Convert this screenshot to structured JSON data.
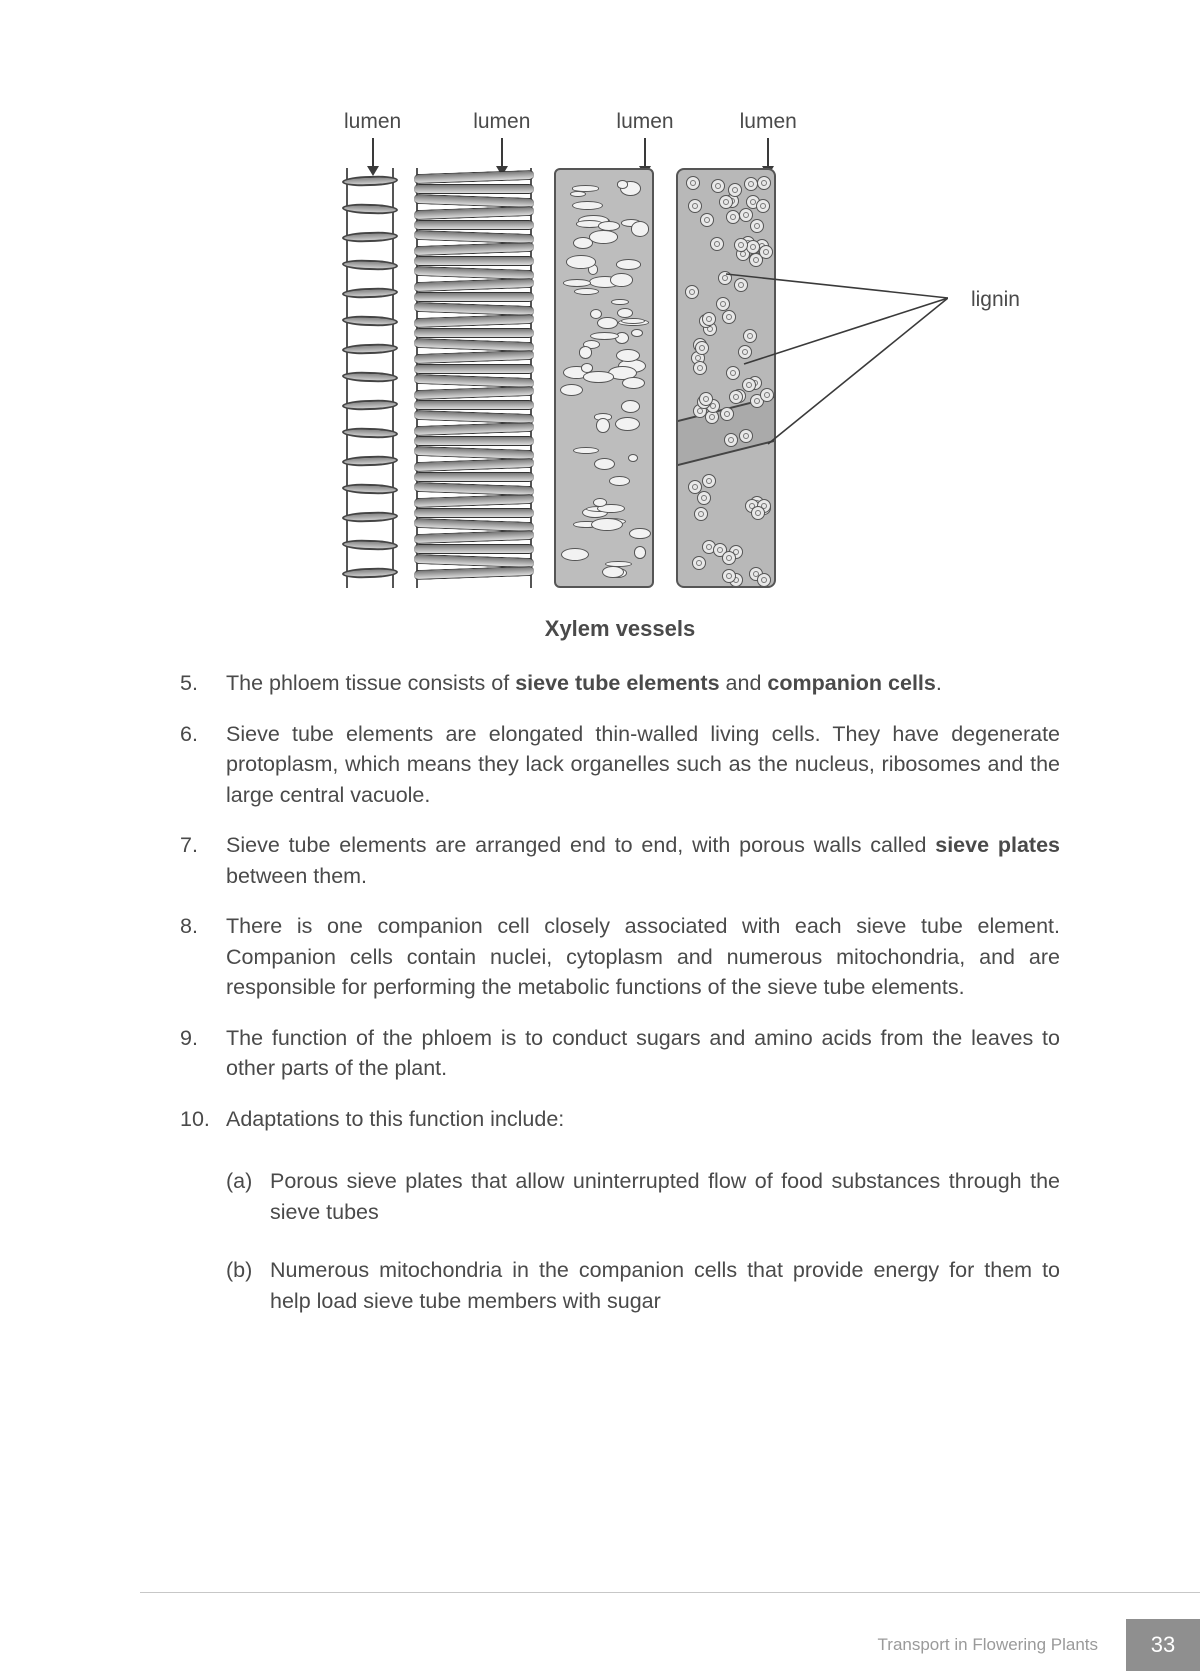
{
  "figure": {
    "top_labels": [
      "lumen",
      "lumen",
      "lumen",
      "lumen"
    ],
    "right_label": "lignin",
    "caption": "Xylem vessels",
    "label_fontsize": 21,
    "caption_fontsize": 22,
    "vessel_count": 4,
    "colors": {
      "stroke": "#3a3a3a",
      "fill_dark": "#b8b8b8",
      "fill_light": "#e8e8e8",
      "text": "#4a4a4a"
    },
    "lumen_label_x_offsets": [
      0,
      118,
      140,
      118
    ]
  },
  "items": [
    {
      "num": "5.",
      "html": "The phloem tissue consists of <b>sieve tube elements</b> and <b>companion cells</b>."
    },
    {
      "num": "6.",
      "html": "Sieve tube elements are elongated thin-walled living cells. They have degenerate protoplasm, which means they lack organelles such as the nucleus, ribosomes and the large central vacuole."
    },
    {
      "num": "7.",
      "html": "Sieve tube elements are arranged end to end, with porous walls called <b>sieve plates</b> between them."
    },
    {
      "num": "8.",
      "html": "There is one companion cell closely associated with each sieve tube element. Companion cells contain nuclei, cytoplasm and numerous mitochondria, and are responsible for performing the metabolic functions of the sieve tube elements."
    },
    {
      "num": "9.",
      "html": "The function of the phloem is to conduct sugars and amino acids from the leaves to other parts of the plant."
    },
    {
      "num": "10.",
      "html": "Adaptations to this function include:",
      "subs": [
        {
          "lab": "(a)",
          "text": "Porous sieve plates that allow uninterrupted flow of food substances through the sieve tubes"
        },
        {
          "lab": "(b)",
          "text": "Numerous mitochondria in the companion cells that provide energy for them to help load sieve tube members with sugar"
        }
      ]
    }
  ],
  "footer": {
    "chapter": "Transport in Flowering Plants",
    "page": "33",
    "bar_color": "#8f8f8f",
    "rule_color": "#c7c7c7"
  },
  "typography": {
    "body_fontsize": 21.5,
    "line_height": 1.42,
    "text_color": "#4a4a4a",
    "font_family": "Arial"
  }
}
